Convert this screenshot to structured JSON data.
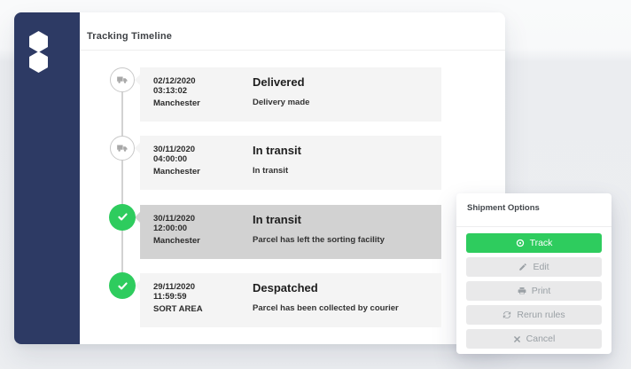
{
  "colors": {
    "sidebar_navy": "#2d3a64",
    "accent_green": "#2ecc5e",
    "row_background": "#f4f4f4",
    "row_highlight": "#d2d2d2",
    "page_background": "#eceef1"
  },
  "sidebar": {
    "logo": "double-hexagon-logo"
  },
  "panel": {
    "title": "Tracking Timeline",
    "events": [
      {
        "date": "02/12/2020",
        "time": "03:13:02",
        "location": "Manchester",
        "status": "Delivered",
        "description": "Delivery made",
        "icon": "truck-icon",
        "highlighted": false
      },
      {
        "date": "30/11/2020",
        "time": "04:00:00",
        "location": "Manchester",
        "status": "In transit",
        "description": "In transit",
        "icon": "truck-icon",
        "highlighted": false
      },
      {
        "date": "30/11/2020",
        "time": "12:00:00",
        "location": "Manchester",
        "status": "In transit",
        "description": "Parcel has left the sorting facility",
        "icon": "check-icon",
        "highlighted": true
      },
      {
        "date": "29/11/2020",
        "time": "11:59:59",
        "location": "SORT AREA",
        "status": "Despatched",
        "description": "Parcel has been collected by courier",
        "icon": "check-icon",
        "highlighted": false
      }
    ]
  },
  "shipment_options": {
    "title": "Shipment Options",
    "buttons": [
      {
        "label": "Track",
        "icon": "target-icon",
        "variant": "primary"
      },
      {
        "label": "Edit",
        "icon": "pencil-icon",
        "variant": "default"
      },
      {
        "label": "Print",
        "icon": "printer-icon",
        "variant": "default"
      },
      {
        "label": "Rerun rules",
        "icon": "refresh-icon",
        "variant": "default"
      },
      {
        "label": "Cancel",
        "icon": "x-icon",
        "variant": "default"
      }
    ]
  }
}
